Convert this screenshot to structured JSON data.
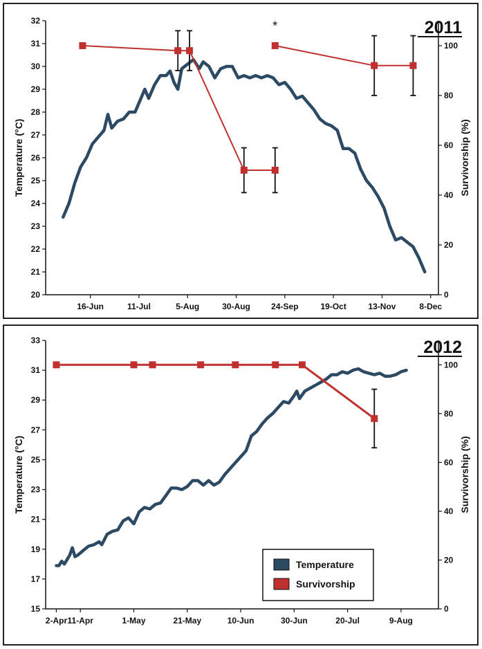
{
  "chart_data": [
    {
      "type": "line",
      "title": "2011",
      "ylabel": "Temperature (°C)",
      "y2label": "Survivorship (%)",
      "ylim": [
        20,
        32
      ],
      "y2lim": [
        0,
        110
      ],
      "xlim": [
        "2011-05-24",
        "2011-12-12"
      ],
      "xticks": [
        "2011-06-16",
        "2011-07-11",
        "2011-08-05",
        "2011-08-30",
        "2011-09-24",
        "2011-10-19",
        "2011-11-13",
        "2011-12-08"
      ],
      "xtick_labels": [
        "16-Jun",
        "11-Jul",
        "5-Aug",
        "30-Aug",
        "24-Sep",
        "19-Oct",
        "13-Nov",
        "8-Dec"
      ],
      "yticks": [
        20,
        21,
        22,
        23,
        24,
        25,
        26,
        27,
        28,
        29,
        30,
        31,
        32
      ],
      "y2ticks": [
        0,
        20,
        40,
        60,
        80,
        100
      ],
      "series": [
        {
          "name": "Temperature",
          "axis": "left",
          "color": "#2c4a63",
          "points": [
            [
              "2011-06-02",
              23.4
            ],
            [
              "2011-06-05",
              24.0
            ],
            [
              "2011-06-08",
              24.9
            ],
            [
              "2011-06-11",
              25.6
            ],
            [
              "2011-06-14",
              26.0
            ],
            [
              "2011-06-17",
              26.6
            ],
            [
              "2011-06-20",
              26.9
            ],
            [
              "2011-06-23",
              27.2
            ],
            [
              "2011-06-25",
              27.9
            ],
            [
              "2011-06-27",
              27.3
            ],
            [
              "2011-06-30",
              27.6
            ],
            [
              "2011-07-03",
              27.7
            ],
            [
              "2011-07-06",
              28.0
            ],
            [
              "2011-07-09",
              28.0
            ],
            [
              "2011-07-12",
              28.6
            ],
            [
              "2011-07-14",
              29.0
            ],
            [
              "2011-07-16",
              28.6
            ],
            [
              "2011-07-19",
              29.2
            ],
            [
              "2011-07-22",
              29.6
            ],
            [
              "2011-07-25",
              29.6
            ],
            [
              "2011-07-27",
              29.8
            ],
            [
              "2011-07-29",
              29.3
            ],
            [
              "2011-07-31",
              29.0
            ],
            [
              "2011-08-02",
              29.9
            ],
            [
              "2011-08-05",
              30.1
            ],
            [
              "2011-08-08",
              30.3
            ],
            [
              "2011-08-11",
              29.9
            ],
            [
              "2011-08-13",
              30.2
            ],
            [
              "2011-08-16",
              30.0
            ],
            [
              "2011-08-19",
              29.5
            ],
            [
              "2011-08-22",
              29.9
            ],
            [
              "2011-08-25",
              30.0
            ],
            [
              "2011-08-28",
              30.0
            ],
            [
              "2011-08-31",
              29.5
            ],
            [
              "2011-09-03",
              29.6
            ],
            [
              "2011-09-06",
              29.5
            ],
            [
              "2011-09-09",
              29.6
            ],
            [
              "2011-09-12",
              29.5
            ],
            [
              "2011-09-15",
              29.6
            ],
            [
              "2011-09-18",
              29.5
            ],
            [
              "2011-09-21",
              29.2
            ],
            [
              "2011-09-24",
              29.3
            ],
            [
              "2011-09-27",
              29.0
            ],
            [
              "2011-09-30",
              28.6
            ],
            [
              "2011-10-03",
              28.7
            ],
            [
              "2011-10-06",
              28.4
            ],
            [
              "2011-10-09",
              28.1
            ],
            [
              "2011-10-12",
              27.7
            ],
            [
              "2011-10-15",
              27.5
            ],
            [
              "2011-10-18",
              27.4
            ],
            [
              "2011-10-21",
              27.2
            ],
            [
              "2011-10-24",
              26.4
            ],
            [
              "2011-10-27",
              26.4
            ],
            [
              "2011-10-30",
              26.2
            ],
            [
              "2011-11-02",
              25.5
            ],
            [
              "2011-11-05",
              25.0
            ],
            [
              "2011-11-08",
              24.7
            ],
            [
              "2011-11-11",
              24.3
            ],
            [
              "2011-11-14",
              23.8
            ],
            [
              "2011-11-17",
              23.0
            ],
            [
              "2011-11-20",
              22.4
            ],
            [
              "2011-11-23",
              22.5
            ],
            [
              "2011-11-26",
              22.3
            ],
            [
              "2011-11-29",
              22.1
            ],
            [
              "2011-12-02",
              21.6
            ],
            [
              "2011-12-05",
              21.0
            ]
          ]
        },
        {
          "name": "Survivorship",
          "axis": "right",
          "color": "#c0302e",
          "groups": [
            [
              [
                "2011-06-12",
                100,
                0
              ],
              [
                "2011-07-31",
                98,
                8
              ],
              [
                "2011-08-06",
                98,
                8
              ]
            ],
            [
              [
                "2011-08-06",
                98,
                8
              ],
              [
                "2011-09-03",
                50,
                9
              ],
              [
                "2011-09-19",
                50,
                9
              ]
            ],
            [
              [
                "2011-09-19",
                100,
                0
              ],
              [
                "2011-11-09",
                92,
                12
              ],
              [
                "2011-11-29",
                92,
                12
              ]
            ]
          ]
        }
      ],
      "annotations": [
        {
          "text": "*",
          "x": "2011-09-19",
          "y2": 109
        }
      ]
    },
    {
      "type": "line",
      "title": "2012",
      "ylabel": "Temperature (°C)",
      "y2label": "Survivorship (%)",
      "ylim": [
        15,
        33
      ],
      "y2lim": [
        0,
        110
      ],
      "xlim": [
        "2012-03-29",
        "2012-08-23"
      ],
      "xticks": [
        "2012-04-02",
        "2012-04-11",
        "2012-05-01",
        "2012-05-21",
        "2012-06-10",
        "2012-06-30",
        "2012-07-20",
        "2012-08-09"
      ],
      "xtick_labels": [
        "2-Apr",
        "11-Apr",
        "1-May",
        "21-May",
        "10-Jun",
        "30-Jun",
        "20-Jul",
        "9-Aug"
      ],
      "yticks": [
        15,
        17,
        19,
        21,
        23,
        25,
        27,
        29,
        31,
        33
      ],
      "y2ticks": [
        0,
        20,
        40,
        60,
        80,
        100
      ],
      "legend": {
        "position": "bottom-right",
        "entries": [
          "Temperature",
          "Survivorship"
        ]
      },
      "series": [
        {
          "name": "Temperature",
          "axis": "left",
          "color": "#2c4a63",
          "points": [
            [
              "2012-04-02",
              17.9
            ],
            [
              "2012-04-03",
              17.9
            ],
            [
              "2012-04-04",
              18.2
            ],
            [
              "2012-04-05",
              18.0
            ],
            [
              "2012-04-06",
              18.3
            ],
            [
              "2012-04-07",
              18.6
            ],
            [
              "2012-04-08",
              19.1
            ],
            [
              "2012-04-09",
              18.5
            ],
            [
              "2012-04-10",
              18.6
            ],
            [
              "2012-04-12",
              18.9
            ],
            [
              "2012-04-14",
              19.2
            ],
            [
              "2012-04-16",
              19.3
            ],
            [
              "2012-04-18",
              19.5
            ],
            [
              "2012-04-19",
              19.3
            ],
            [
              "2012-04-21",
              20.0
            ],
            [
              "2012-04-23",
              20.2
            ],
            [
              "2012-04-25",
              20.3
            ],
            [
              "2012-04-27",
              20.9
            ],
            [
              "2012-04-29",
              21.1
            ],
            [
              "2012-05-01",
              20.7
            ],
            [
              "2012-05-03",
              21.5
            ],
            [
              "2012-05-05",
              21.8
            ],
            [
              "2012-05-07",
              21.7
            ],
            [
              "2012-05-09",
              22.0
            ],
            [
              "2012-05-11",
              22.1
            ],
            [
              "2012-05-13",
              22.6
            ],
            [
              "2012-05-15",
              23.1
            ],
            [
              "2012-05-17",
              23.1
            ],
            [
              "2012-05-19",
              23.0
            ],
            [
              "2012-05-21",
              23.2
            ],
            [
              "2012-05-23",
              23.6
            ],
            [
              "2012-05-25",
              23.6
            ],
            [
              "2012-05-27",
              23.3
            ],
            [
              "2012-05-29",
              23.6
            ],
            [
              "2012-05-31",
              23.3
            ],
            [
              "2012-06-02",
              23.5
            ],
            [
              "2012-06-04",
              24.0
            ],
            [
              "2012-06-06",
              24.4
            ],
            [
              "2012-06-08",
              24.8
            ],
            [
              "2012-06-10",
              25.2
            ],
            [
              "2012-06-12",
              25.6
            ],
            [
              "2012-06-14",
              26.6
            ],
            [
              "2012-06-16",
              26.9
            ],
            [
              "2012-06-18",
              27.4
            ],
            [
              "2012-06-20",
              27.8
            ],
            [
              "2012-06-22",
              28.1
            ],
            [
              "2012-06-24",
              28.5
            ],
            [
              "2012-06-26",
              28.9
            ],
            [
              "2012-06-28",
              28.8
            ],
            [
              "2012-06-30",
              29.3
            ],
            [
              "2012-07-01",
              29.6
            ],
            [
              "2012-07-02",
              29.1
            ],
            [
              "2012-07-04",
              29.6
            ],
            [
              "2012-07-06",
              29.8
            ],
            [
              "2012-07-08",
              30.0
            ],
            [
              "2012-07-10",
              30.2
            ],
            [
              "2012-07-12",
              30.4
            ],
            [
              "2012-07-14",
              30.7
            ],
            [
              "2012-07-16",
              30.7
            ],
            [
              "2012-07-18",
              30.9
            ],
            [
              "2012-07-20",
              30.8
            ],
            [
              "2012-07-22",
              31.0
            ],
            [
              "2012-07-24",
              31.1
            ],
            [
              "2012-07-26",
              30.9
            ],
            [
              "2012-07-28",
              30.8
            ],
            [
              "2012-07-30",
              30.7
            ],
            [
              "2012-08-01",
              30.8
            ],
            [
              "2012-08-03",
              30.6
            ],
            [
              "2012-08-05",
              30.6
            ],
            [
              "2012-08-07",
              30.7
            ],
            [
              "2012-08-09",
              30.9
            ],
            [
              "2012-08-11",
              31.0
            ]
          ]
        },
        {
          "name": "Survivorship",
          "axis": "right",
          "color": "#c0302e",
          "groups": [
            [
              [
                "2012-04-02",
                100,
                0
              ],
              [
                "2012-05-01",
                100,
                0
              ],
              [
                "2012-05-08",
                100,
                0
              ],
              [
                "2012-05-26",
                100,
                0
              ],
              [
                "2012-06-08",
                100,
                0
              ],
              [
                "2012-06-23",
                100,
                0
              ],
              [
                "2012-07-03",
                100,
                0
              ],
              [
                "2012-07-30",
                78,
                12
              ]
            ]
          ]
        }
      ]
    }
  ]
}
